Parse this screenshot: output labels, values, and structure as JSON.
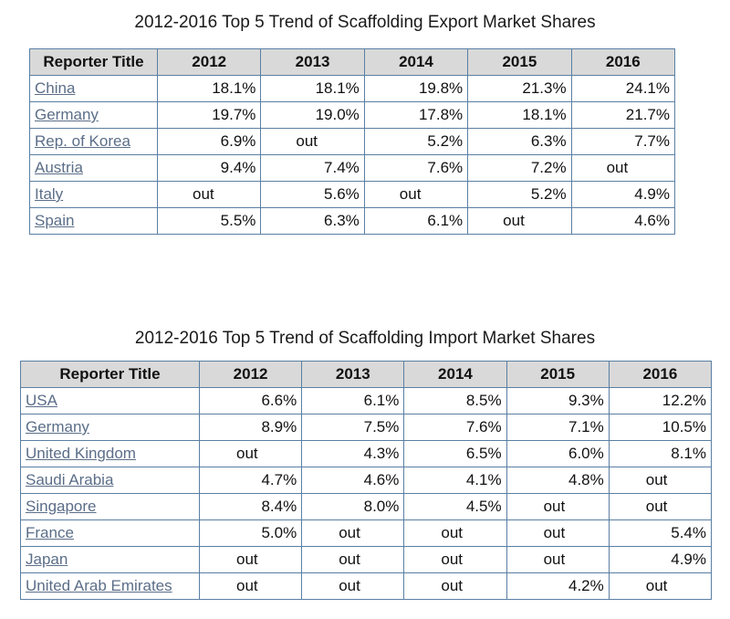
{
  "export": {
    "title": "2012-2016 Top 5 Trend of Scaffolding Export Market Shares",
    "headers": [
      "Reporter Title",
      "2012",
      "2013",
      "2014",
      "2015",
      "2016"
    ],
    "rows": [
      {
        "country": "China",
        "values": [
          "18.1%",
          "18.1%",
          "19.8%",
          "21.3%",
          "24.1%"
        ]
      },
      {
        "country": "Germany",
        "values": [
          "19.7%",
          "19.0%",
          "17.8%",
          "18.1%",
          "21.7%"
        ]
      },
      {
        "country": "Rep. of Korea",
        "values": [
          "6.9%",
          "out",
          "5.2%",
          "6.3%",
          "7.7%"
        ]
      },
      {
        "country": "Austria",
        "values": [
          "9.4%",
          "7.4%",
          "7.6%",
          "7.2%",
          "out"
        ]
      },
      {
        "country": "Italy",
        "values": [
          "out",
          "5.6%",
          "out",
          "5.2%",
          "4.9%"
        ]
      },
      {
        "country": "Spain",
        "values": [
          "5.5%",
          "6.3%",
          "6.1%",
          "out",
          "4.6%"
        ]
      }
    ]
  },
  "import": {
    "title": "2012-2016 Top 5 Trend of Scaffolding Import Market Shares",
    "headers": [
      "Reporter Title",
      "2012",
      "2013",
      "2014",
      "2015",
      "2016"
    ],
    "rows": [
      {
        "country": "USA",
        "values": [
          "6.6%",
          "6.1%",
          "8.5%",
          "9.3%",
          "12.2%"
        ]
      },
      {
        "country": "Germany",
        "values": [
          "8.9%",
          "7.5%",
          "7.6%",
          "7.1%",
          "10.5%"
        ]
      },
      {
        "country": "United Kingdom",
        "values": [
          "out",
          "4.3%",
          "6.5%",
          "6.0%",
          "8.1%"
        ]
      },
      {
        "country": "Saudi Arabia",
        "values": [
          "4.7%",
          "4.6%",
          "4.1%",
          "4.8%",
          "out"
        ]
      },
      {
        "country": "Singapore",
        "values": [
          "8.4%",
          "8.0%",
          "4.5%",
          "out",
          "out"
        ]
      },
      {
        "country": "France",
        "values": [
          "5.0%",
          "out",
          "out",
          "out",
          "5.4%"
        ]
      },
      {
        "country": "Japan",
        "values": [
          "out",
          "out",
          "out",
          "out",
          "4.9%"
        ]
      },
      {
        "country": "United Arab Emirates",
        "values": [
          "out",
          "out",
          "out",
          "4.2%",
          "out"
        ]
      }
    ]
  }
}
